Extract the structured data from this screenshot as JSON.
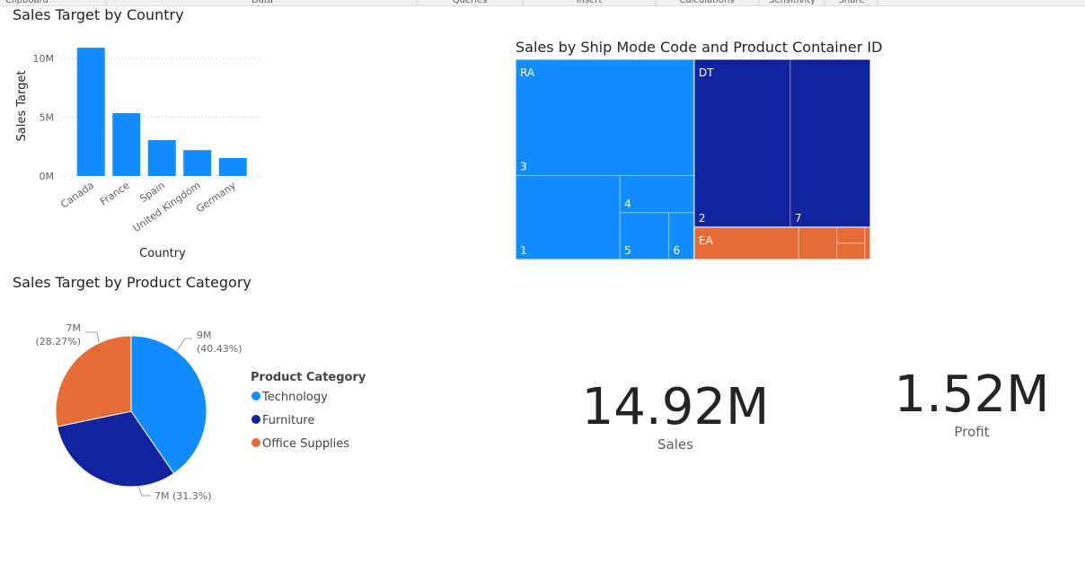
{
  "ribbon": {
    "groups": [
      "Clipboard",
      "Data",
      "Queries",
      "Insert",
      "Calculations",
      "Sensitivity",
      "Share"
    ]
  },
  "chart_data": [
    {
      "type": "bar",
      "title": "Sales Target by Country",
      "x_label": "Country",
      "y_label": "Sales Target",
      "categories": [
        "Canada",
        "France",
        "Spain",
        "United Kingdom",
        "Germany"
      ],
      "values": [
        10900000,
        5340000,
        3050000,
        2200000,
        1530000
      ],
      "color": "#118DFF",
      "ylim": [
        0,
        11000000
      ],
      "yticks": [
        {
          "value": 0,
          "label": "0M"
        },
        {
          "value": 5000000,
          "label": "5M"
        },
        {
          "value": 10000000,
          "label": "10M"
        }
      ],
      "grid": true
    },
    {
      "type": "treemap",
      "title": "Sales by Ship Mode Code and Product Container ID",
      "groups": [
        {
          "name": "RA",
          "color": "#118DFF",
          "categories": [
            "3",
            "1",
            "4",
            "5",
            "6"
          ],
          "values": [
            4360000,
            1840000,
            580000,
            480000,
            250000
          ]
        },
        {
          "name": "DT",
          "color": "#12239E",
          "categories": [
            "2",
            "7"
          ],
          "values": [
            3390000,
            2820000
          ]
        },
        {
          "name": "EA",
          "color": "#E66C37",
          "categories": [
            null,
            null,
            null,
            null,
            null
          ],
          "values": [
            710000,
            260000,
            95000,
            95000,
            37000
          ]
        }
      ]
    },
    {
      "type": "pie",
      "title": "Sales Target by Product Category",
      "legend_title": "Product Category",
      "categories": [
        "Technology",
        "Furniture",
        "Office Supplies"
      ],
      "colors": [
        "#118DFF",
        "#12239E",
        "#E66C37"
      ],
      "values": [
        40.43,
        31.3,
        28.27
      ],
      "value_labels": [
        "9M (40.43%)",
        "7M (31.3%)",
        "7M (28.27%)"
      ]
    },
    {
      "type": "card",
      "values": [
        14920000
      ],
      "value_labels": [
        "14.92M"
      ],
      "categories": [
        "Sales"
      ]
    },
    {
      "type": "card",
      "values": [
        1520000
      ],
      "value_labels": [
        "1.52M"
      ],
      "categories": [
        "Profit"
      ]
    }
  ]
}
